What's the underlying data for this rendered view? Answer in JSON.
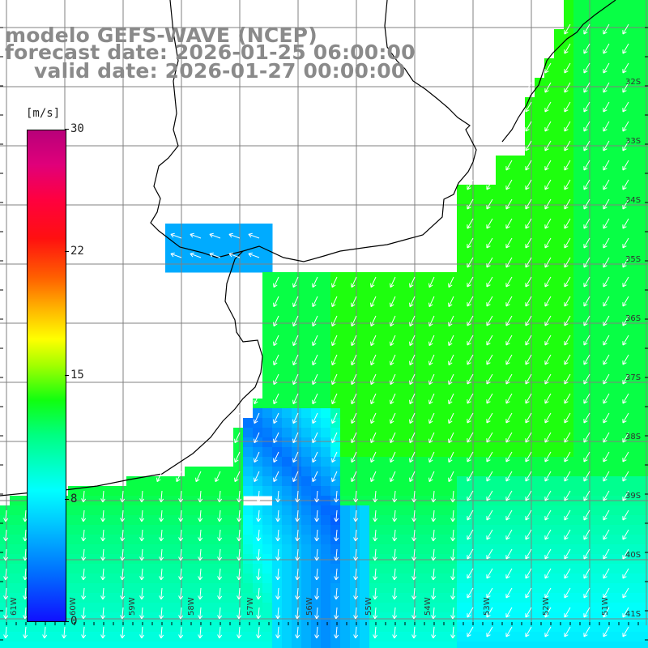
{
  "title": {
    "line1": "modelo GEFS-WAVE (NCEP)",
    "line2": "forecast date: 2026-01-25 06:00:00",
    "line3": "valid date: 2026-01-27 00:00:00"
  },
  "colorbar": {
    "unit": "[m/s]",
    "min": 0,
    "max": 30,
    "ticks": [
      "30",
      "22",
      "15",
      "8",
      "0"
    ]
  },
  "map": {
    "lat_labels": [
      "32S",
      "33S",
      "34S",
      "35S",
      "36S",
      "37S",
      "38S",
      "39S",
      "40S",
      "41S"
    ],
    "lon_labels": [
      "61W",
      "60W",
      "59W",
      "58W",
      "57W",
      "56W",
      "55W",
      "54W",
      "53W",
      "52W",
      "51W"
    ],
    "field": "wind speed and direction",
    "colors": {
      "land": "#ffffff",
      "grid": "#808080",
      "coast": "#000000",
      "arrow": "#ffffff"
    }
  }
}
